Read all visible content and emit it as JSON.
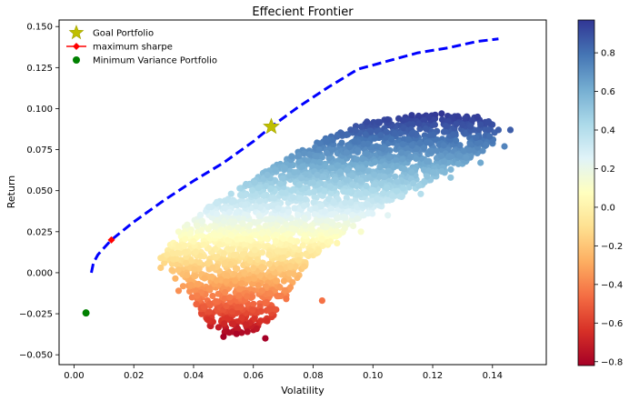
{
  "chart_data": {
    "type": "scatter",
    "title": "Effecient Frontier",
    "xlabel": "Volatility",
    "ylabel": "Return",
    "xlim": [
      -0.005,
      0.158
    ],
    "ylim": [
      -0.056,
      0.154
    ],
    "xticks": [
      {
        "value": 0.0,
        "label": "0.00"
      },
      {
        "value": 0.02,
        "label": "0.02"
      },
      {
        "value": 0.04,
        "label": "0.04"
      },
      {
        "value": 0.06,
        "label": "0.06"
      },
      {
        "value": 0.08,
        "label": "0.08"
      },
      {
        "value": 0.1,
        "label": "0.10"
      },
      {
        "value": 0.12,
        "label": "0.12"
      },
      {
        "value": 0.14,
        "label": "0.14"
      }
    ],
    "yticks": [
      {
        "value": -0.05,
        "label": "−0.050"
      },
      {
        "value": -0.025,
        "label": "−0.025"
      },
      {
        "value": 0.0,
        "label": "0.000"
      },
      {
        "value": 0.025,
        "label": "0.025"
      },
      {
        "value": 0.05,
        "label": "0.050"
      },
      {
        "value": 0.075,
        "label": "0.075"
      },
      {
        "value": 0.1,
        "label": "0.100"
      },
      {
        "value": 0.125,
        "label": "0.125"
      },
      {
        "value": 0.15,
        "label": "0.150"
      }
    ],
    "grid": false,
    "legend_position": "top-left",
    "legend": [
      {
        "label": "Goal Portfolio",
        "marker": "star",
        "color": "#bfbf00"
      },
      {
        "label": "maximum sharpe",
        "marker": "diamond-line",
        "color": "#ff0000"
      },
      {
        "label": "Minimum Variance Portfolio",
        "marker": "circle",
        "color": "#008000"
      }
    ],
    "series": [
      {
        "name": "Goal Portfolio",
        "kind": "star",
        "color": "#bfbf00",
        "points": [
          {
            "x": 0.066,
            "y": 0.089
          }
        ]
      },
      {
        "name": "maximum sharpe",
        "kind": "diamond",
        "color": "#ff0000",
        "points": [
          {
            "x": 0.0125,
            "y": 0.02
          }
        ]
      },
      {
        "name": "Minimum Variance Portfolio",
        "kind": "circle",
        "color": "#008000",
        "points": [
          {
            "x": 0.004,
            "y": -0.0245
          }
        ]
      },
      {
        "name": "efficient frontier",
        "kind": "dashed-line",
        "color": "#0000ff",
        "points": [
          {
            "x": 0.0058,
            "y": 0.0
          },
          {
            "x": 0.0065,
            "y": 0.006
          },
          {
            "x": 0.008,
            "y": 0.011
          },
          {
            "x": 0.0125,
            "y": 0.02
          },
          {
            "x": 0.02,
            "y": 0.031
          },
          {
            "x": 0.03,
            "y": 0.044
          },
          {
            "x": 0.04,
            "y": 0.056
          },
          {
            "x": 0.05,
            "y": 0.067
          },
          {
            "x": 0.06,
            "y": 0.08
          },
          {
            "x": 0.066,
            "y": 0.089
          },
          {
            "x": 0.075,
            "y": 0.101
          },
          {
            "x": 0.085,
            "y": 0.113
          },
          {
            "x": 0.095,
            "y": 0.124
          },
          {
            "x": 0.105,
            "y": 0.129
          },
          {
            "x": 0.115,
            "y": 0.134
          },
          {
            "x": 0.125,
            "y": 0.137
          },
          {
            "x": 0.135,
            "y": 0.141
          },
          {
            "x": 0.142,
            "y": 0.1425
          }
        ]
      }
    ],
    "cloud": {
      "description_of_shape": "simulated random portfolios colored by Sharpe ratio",
      "outline": [
        {
          "x": 0.029,
          "y": 0.009
        },
        {
          "x": 0.035,
          "y": 0.025
        },
        {
          "x": 0.045,
          "y": 0.04
        },
        {
          "x": 0.055,
          "y": 0.051
        },
        {
          "x": 0.065,
          "y": 0.063
        },
        {
          "x": 0.075,
          "y": 0.074
        },
        {
          "x": 0.085,
          "y": 0.083
        },
        {
          "x": 0.095,
          "y": 0.09
        },
        {
          "x": 0.105,
          "y": 0.094
        },
        {
          "x": 0.12,
          "y": 0.097
        },
        {
          "x": 0.135,
          "y": 0.095
        },
        {
          "x": 0.142,
          "y": 0.09
        },
        {
          "x": 0.14,
          "y": 0.078
        },
        {
          "x": 0.13,
          "y": 0.066
        },
        {
          "x": 0.115,
          "y": 0.052
        },
        {
          "x": 0.1,
          "y": 0.036
        },
        {
          "x": 0.088,
          "y": 0.022
        },
        {
          "x": 0.078,
          "y": 0.006
        },
        {
          "x": 0.072,
          "y": -0.012
        },
        {
          "x": 0.066,
          "y": -0.028
        },
        {
          "x": 0.06,
          "y": -0.036
        },
        {
          "x": 0.052,
          "y": -0.038
        },
        {
          "x": 0.045,
          "y": -0.032
        },
        {
          "x": 0.04,
          "y": -0.018
        },
        {
          "x": 0.034,
          "y": -0.004
        }
      ],
      "scatter_points": [
        {
          "x": 0.029,
          "y": 0.009
        },
        {
          "x": 0.035,
          "y": 0.025
        },
        {
          "x": 0.04,
          "y": 0.019
        },
        {
          "x": 0.045,
          "y": 0.04
        },
        {
          "x": 0.051,
          "y": 0.044
        },
        {
          "x": 0.082,
          "y": 0.075
        },
        {
          "x": 0.088,
          "y": 0.083
        },
        {
          "x": 0.098,
          "y": 0.092
        },
        {
          "x": 0.113,
          "y": 0.096
        },
        {
          "x": 0.123,
          "y": 0.097
        },
        {
          "x": 0.135,
          "y": 0.095
        },
        {
          "x": 0.142,
          "y": 0.087
        },
        {
          "x": 0.146,
          "y": 0.087
        },
        {
          "x": 0.144,
          "y": 0.077
        },
        {
          "x": 0.136,
          "y": 0.067
        },
        {
          "x": 0.126,
          "y": 0.058
        },
        {
          "x": 0.116,
          "y": 0.048
        },
        {
          "x": 0.105,
          "y": 0.035
        },
        {
          "x": 0.096,
          "y": 0.025
        },
        {
          "x": 0.088,
          "y": 0.018
        },
        {
          "x": 0.083,
          "y": -0.017
        },
        {
          "x": 0.071,
          "y": -0.016
        },
        {
          "x": 0.064,
          "y": -0.04
        },
        {
          "x": 0.058,
          "y": -0.036
        },
        {
          "x": 0.05,
          "y": -0.039
        },
        {
          "x": 0.045,
          "y": -0.029
        },
        {
          "x": 0.035,
          "y": -0.011
        },
        {
          "x": 0.029,
          "y": 0.003
        }
      ]
    },
    "colorbar": {
      "min": -0.82,
      "max": 0.97,
      "ticks": [
        {
          "value": -0.8,
          "label": "−0.8"
        },
        {
          "value": -0.6,
          "label": "−0.6"
        },
        {
          "value": -0.4,
          "label": "−0.4"
        },
        {
          "value": -0.2,
          "label": "−0.2"
        },
        {
          "value": 0.0,
          "label": "0.0"
        },
        {
          "value": 0.2,
          "label": "0.2"
        },
        {
          "value": 0.4,
          "label": "0.4"
        },
        {
          "value": 0.6,
          "label": "0.6"
        },
        {
          "value": 0.8,
          "label": "0.8"
        }
      ],
      "colormap": "RdYlBu",
      "stops": [
        "#a50026",
        "#d73027",
        "#f46d43",
        "#fdae61",
        "#fee090",
        "#ffffbf",
        "#e0f3f8",
        "#abd9e9",
        "#74add1",
        "#4575b4",
        "#313695"
      ]
    }
  }
}
